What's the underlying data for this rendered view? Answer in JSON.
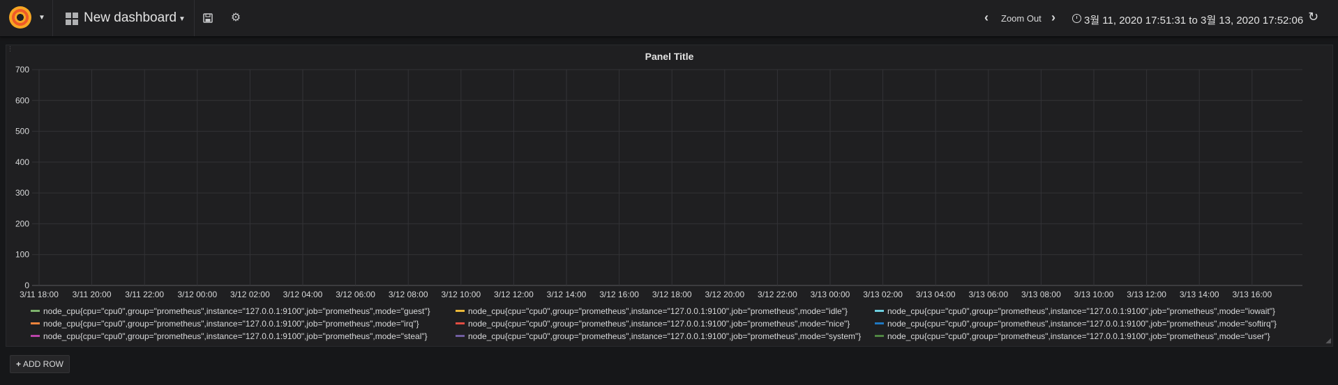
{
  "navbar": {
    "dashboard_title": "New dashboard",
    "zoom_out_label": "Zoom Out",
    "time_range": "3월 11, 2020 17:51:31 to 3월 13, 2020 17:52:06"
  },
  "icons": {
    "logo": "grafana-logo-icon",
    "dashboard": "grid-icon",
    "save": "save-icon",
    "settings": "gear-icon",
    "zoom_back": "chevron-left-icon",
    "zoom_forward": "chevron-right-icon",
    "clock": "clock-icon",
    "refresh": "refresh-icon"
  },
  "panel": {
    "title": "Panel Title"
  },
  "chart_data": {
    "type": "line",
    "title": "Panel Title",
    "xlabel": "",
    "ylabel": "",
    "ylim": [
      0,
      700
    ],
    "yticks": [
      "0",
      "100",
      "200",
      "300",
      "400",
      "500",
      "600",
      "700"
    ],
    "xticks": [
      "3/11 18:00",
      "3/11 20:00",
      "3/11 22:00",
      "3/12 00:00",
      "3/12 02:00",
      "3/12 04:00",
      "3/12 06:00",
      "3/12 08:00",
      "3/12 10:00",
      "3/12 12:00",
      "3/12 14:00",
      "3/12 16:00",
      "3/12 18:00",
      "3/12 20:00",
      "3/12 22:00",
      "3/13 00:00",
      "3/13 02:00",
      "3/13 04:00",
      "3/13 06:00",
      "3/13 08:00",
      "3/13 10:00",
      "3/13 12:00",
      "3/13 14:00",
      "3/13 16:00"
    ],
    "grid": true,
    "legend_position": "bottom",
    "series": [
      {
        "name": "node_cpu{cpu=\"cpu0\",group=\"prometheus\",instance=\"127.0.0.1:9100\",job=\"prometheus\",mode=\"guest\"}",
        "color": "#7eb26d",
        "values": []
      },
      {
        "name": "node_cpu{cpu=\"cpu0\",group=\"prometheus\",instance=\"127.0.0.1:9100\",job=\"prometheus\",mode=\"idle\"}",
        "color": "#eab839",
        "values": []
      },
      {
        "name": "node_cpu{cpu=\"cpu0\",group=\"prometheus\",instance=\"127.0.0.1:9100\",job=\"prometheus\",mode=\"iowait\"}",
        "color": "#6ed0e0",
        "values": []
      },
      {
        "name": "node_cpu{cpu=\"cpu0\",group=\"prometheus\",instance=\"127.0.0.1:9100\",job=\"prometheus\",mode=\"irq\"}",
        "color": "#ef843c",
        "values": []
      },
      {
        "name": "node_cpu{cpu=\"cpu0\",group=\"prometheus\",instance=\"127.0.0.1:9100\",job=\"prometheus\",mode=\"nice\"}",
        "color": "#e24d42",
        "values": []
      },
      {
        "name": "node_cpu{cpu=\"cpu0\",group=\"prometheus\",instance=\"127.0.0.1:9100\",job=\"prometheus\",mode=\"softirq\"}",
        "color": "#1f78c1",
        "values": []
      },
      {
        "name": "node_cpu{cpu=\"cpu0\",group=\"prometheus\",instance=\"127.0.0.1:9100\",job=\"prometheus\",mode=\"steal\"}",
        "color": "#ba43a9",
        "values": []
      },
      {
        "name": "node_cpu{cpu=\"cpu0\",group=\"prometheus\",instance=\"127.0.0.1:9100\",job=\"prometheus\",mode=\"system\"}",
        "color": "#705da0",
        "values": []
      },
      {
        "name": "node_cpu{cpu=\"cpu0\",group=\"prometheus\",instance=\"127.0.0.1:9100\",job=\"prometheus\",mode=\"user\"}",
        "color": "#508642",
        "values": []
      }
    ]
  },
  "add_row_label": "ADD ROW"
}
